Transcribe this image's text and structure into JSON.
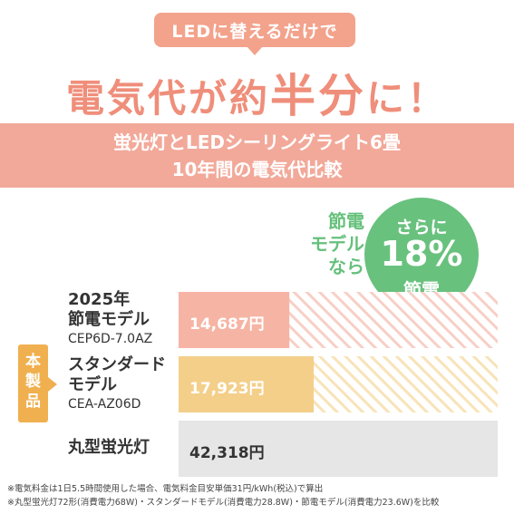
{
  "header": {
    "pill": "LEDに替えるだけで",
    "headline_a": "電気代が約",
    "headline_b": "半分",
    "headline_c": "に！",
    "band_line1": "蛍光灯とLEDシーリングライト6畳",
    "band_line2": "10年間の電気代比較"
  },
  "callout": {
    "left_lines": [
      "節電",
      "モデル",
      "なら"
    ],
    "bubble_line1": "さらに",
    "bubble_line2": "18%",
    "bubble_line3": "節電"
  },
  "product_tag": "本製品",
  "rows": [
    {
      "name_lines": [
        "2025年",
        "節電モデル"
      ],
      "model": "CEP6D-7.0AZ",
      "value_label": "14,687円"
    },
    {
      "name_lines": [
        "スタンダード",
        "モデル"
      ],
      "model": "CEA-AZ06D",
      "value_label": "17,923円"
    },
    {
      "name_lines": [
        "丸型蛍光灯"
      ],
      "model": "",
      "value_label": "42,318円"
    }
  ],
  "chart_data": {
    "type": "bar",
    "orientation": "horizontal",
    "categories": [
      "2025年節電モデル CEP6D-7.0AZ",
      "スタンダードモデル CEA-AZ06D",
      "丸型蛍光灯"
    ],
    "values": [
      14687,
      17923,
      42318
    ],
    "unit": "円",
    "colors": [
      "#f6b4a4",
      "#f4cf8a",
      "#e6e6e6"
    ]
  },
  "footnotes": [
    "※電気料金は1日5.5時間使用した場合、電気料金目安単価31円/kWh(税込)で算出",
    "※丸型蛍光灯72形(消費電力68W)・スタンダードモデル(消費電力28.8W)・節電モデル(消費電力23.6W)を比較"
  ]
}
